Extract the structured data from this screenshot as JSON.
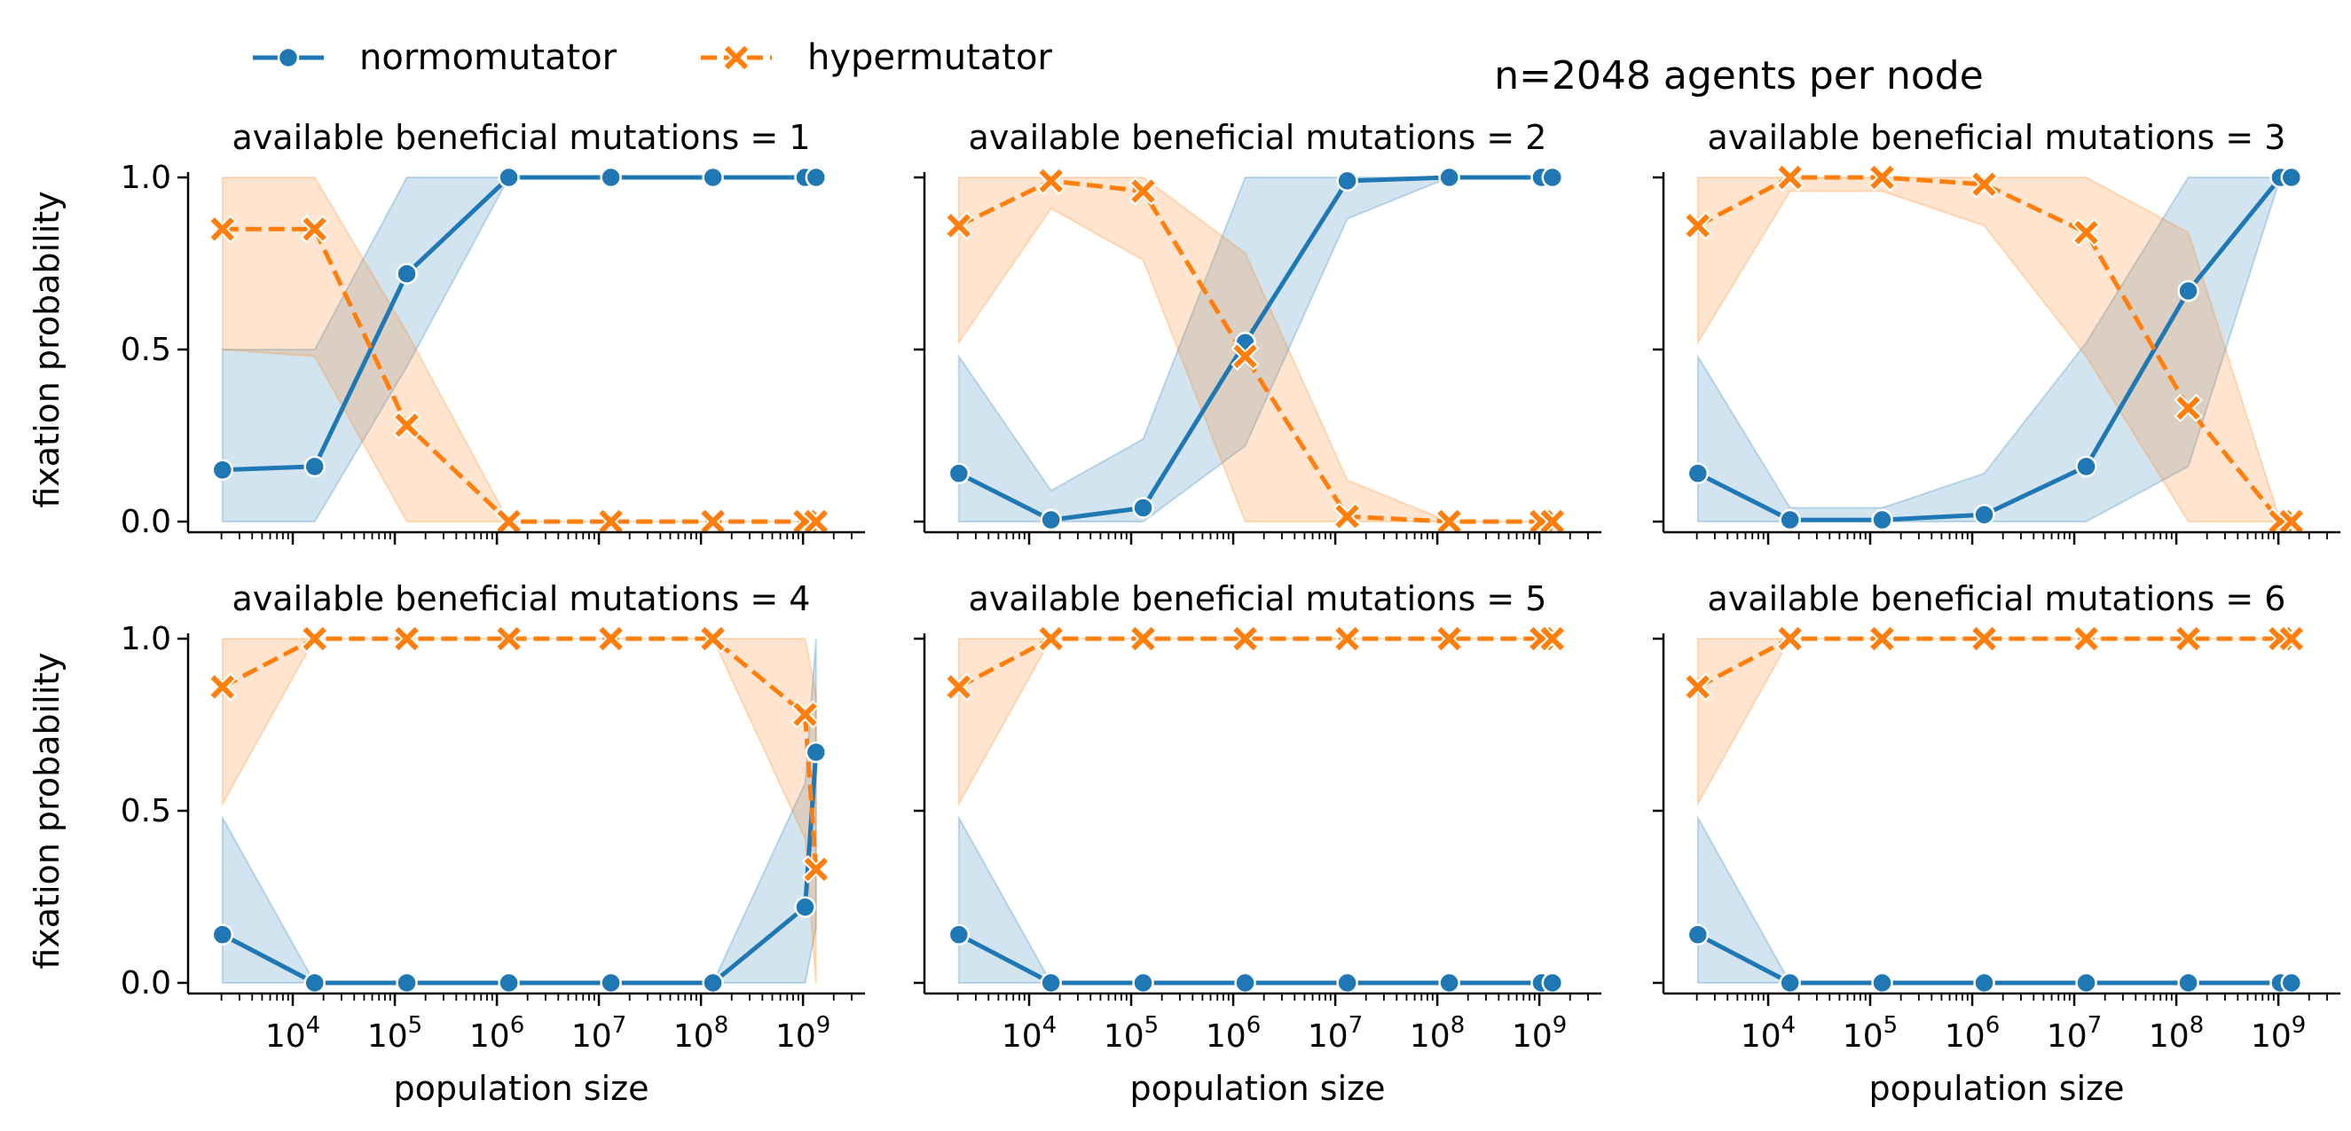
{
  "chart_data": {
    "type": "line",
    "suptitle": "n=2048 agents per node",
    "xlabel": "population size",
    "ylabel": "fixation probability",
    "xscale": "log",
    "xlim": [
      1000,
      3000000000
    ],
    "ylim": [
      0,
      1
    ],
    "yticks": [
      {
        "value": 0,
        "label": "0.0"
      },
      {
        "value": 0.5,
        "label": "0.5"
      },
      {
        "value": 1,
        "label": "1.0"
      }
    ],
    "xticks": [
      {
        "value": 10000,
        "base": "10",
        "exp": "4"
      },
      {
        "value": 100000,
        "base": "10",
        "exp": "5"
      },
      {
        "value": 1000000,
        "base": "10",
        "exp": "6"
      },
      {
        "value": 10000000,
        "base": "10",
        "exp": "7"
      },
      {
        "value": 100000000,
        "base": "10",
        "exp": "8"
      },
      {
        "value": 1000000000,
        "base": "10",
        "exp": "9"
      }
    ],
    "legend": {
      "placement": "top-left",
      "entries": [
        {
          "label": "normomutator",
          "color": "#1f77b4",
          "marker": "circle",
          "dash": "solid"
        },
        {
          "label": "hypermutator",
          "color": "#ff7f0e",
          "marker": "x",
          "dash": "dashed"
        }
      ]
    },
    "panels": [
      {
        "title": "available beneficial mutations = 1",
        "x": [
          2048,
          16384,
          131072,
          1310720,
          13107200,
          131072000,
          1048576000,
          1342177280
        ],
        "series": [
          {
            "name": "normomutator",
            "y": [
              0.15,
              0.16,
              0.72,
              1,
              1,
              1,
              1,
              1
            ],
            "lo": [
              0,
              0,
              0.45,
              1,
              1,
              1,
              1,
              1
            ],
            "hi": [
              0.5,
              0.5,
              1,
              1,
              1,
              1,
              1,
              1
            ]
          },
          {
            "name": "hypermutator",
            "y": [
              0.85,
              0.85,
              0.28,
              0,
              0,
              0,
              0,
              0
            ],
            "lo": [
              0.5,
              0.48,
              0,
              0,
              0,
              0,
              0,
              0
            ],
            "hi": [
              1,
              1,
              0.55,
              0,
              0,
              0,
              0,
              0
            ]
          }
        ]
      },
      {
        "title": "available beneficial mutations = 2",
        "x": [
          2048,
          16384,
          131072,
          1310720,
          13107200,
          131072000,
          1048576000,
          1342177280
        ],
        "series": [
          {
            "name": "normomutator",
            "y": [
              0.14,
              0.005,
              0.04,
              0.52,
              0.99,
              1,
              1,
              1
            ],
            "lo": [
              0,
              0,
              0,
              0.22,
              0.88,
              1,
              1,
              1
            ],
            "hi": [
              0.48,
              0.09,
              0.24,
              1,
              1,
              1,
              1,
              1
            ]
          },
          {
            "name": "hypermutator",
            "y": [
              0.86,
              0.99,
              0.96,
              0.48,
              0.015,
              0,
              0,
              0
            ],
            "lo": [
              0.52,
              0.91,
              0.76,
              0,
              0,
              0,
              0,
              0
            ],
            "hi": [
              1,
              1,
              1,
              0.78,
              0.12,
              0,
              0,
              0
            ]
          }
        ]
      },
      {
        "title": "available beneficial mutations = 3",
        "x": [
          2048,
          16384,
          131072,
          1310720,
          13107200,
          131072000,
          1048576000,
          1342177280
        ],
        "series": [
          {
            "name": "normomutator",
            "y": [
              0.14,
              0.005,
              0.005,
              0.02,
              0.16,
              0.67,
              1,
              1
            ],
            "lo": [
              0,
              0,
              0,
              0,
              0,
              0.16,
              1,
              1
            ],
            "hi": [
              0.48,
              0.04,
              0.04,
              0.14,
              0.52,
              1,
              1,
              1
            ]
          },
          {
            "name": "hypermutator",
            "y": [
              0.86,
              1,
              1,
              0.98,
              0.84,
              0.33,
              0,
              0
            ],
            "lo": [
              0.52,
              0.96,
              0.96,
              0.86,
              0.48,
              0,
              0,
              0
            ],
            "hi": [
              1,
              1,
              1,
              1,
              1,
              0.84,
              0,
              0
            ]
          }
        ]
      },
      {
        "title": "available beneficial mutations = 4",
        "x": [
          2048,
          16384,
          131072,
          1310720,
          13107200,
          131072000,
          1048576000,
          1342177280
        ],
        "series": [
          {
            "name": "normomutator",
            "y": [
              0.14,
              0,
              0,
              0,
              0,
              0,
              0.22,
              0.67
            ],
            "lo": [
              0,
              0,
              0,
              0,
              0,
              0,
              0,
              0.16
            ],
            "hi": [
              0.48,
              0,
              0,
              0,
              0,
              0,
              0.58,
              1
            ]
          },
          {
            "name": "hypermutator",
            "y": [
              0.86,
              1,
              1,
              1,
              1,
              1,
              0.78,
              0.33
            ],
            "lo": [
              0.52,
              1,
              1,
              1,
              1,
              1,
              0.42,
              0
            ],
            "hi": [
              1,
              1,
              1,
              1,
              1,
              1,
              1,
              0.84
            ]
          }
        ]
      },
      {
        "title": "available beneficial mutations = 5",
        "x": [
          2048,
          16384,
          131072,
          1310720,
          13107200,
          131072000,
          1048576000,
          1342177280
        ],
        "series": [
          {
            "name": "normomutator",
            "y": [
              0.14,
              0,
              0,
              0,
              0,
              0,
              0,
              0
            ],
            "lo": [
              0,
              0,
              0,
              0,
              0,
              0,
              0,
              0
            ],
            "hi": [
              0.48,
              0,
              0,
              0,
              0,
              0,
              0,
              0
            ]
          },
          {
            "name": "hypermutator",
            "y": [
              0.86,
              1,
              1,
              1,
              1,
              1,
              1,
              1
            ],
            "lo": [
              0.52,
              1,
              1,
              1,
              1,
              1,
              1,
              1
            ],
            "hi": [
              1,
              1,
              1,
              1,
              1,
              1,
              1,
              1
            ]
          }
        ]
      },
      {
        "title": "available beneficial mutations = 6",
        "x": [
          2048,
          16384,
          131072,
          1310720,
          13107200,
          131072000,
          1048576000,
          1342177280
        ],
        "series": [
          {
            "name": "normomutator",
            "y": [
              0.14,
              0,
              0,
              0,
              0,
              0,
              0,
              0
            ],
            "lo": [
              0,
              0,
              0,
              0,
              0,
              0,
              0,
              0
            ],
            "hi": [
              0.48,
              0,
              0,
              0,
              0,
              0,
              0,
              0
            ]
          },
          {
            "name": "hypermutator",
            "y": [
              0.86,
              1,
              1,
              1,
              1,
              1,
              1,
              1
            ],
            "lo": [
              0.52,
              1,
              1,
              1,
              1,
              1,
              1,
              1
            ],
            "hi": [
              1,
              1,
              1,
              1,
              1,
              1,
              1,
              1
            ]
          }
        ]
      }
    ]
  }
}
